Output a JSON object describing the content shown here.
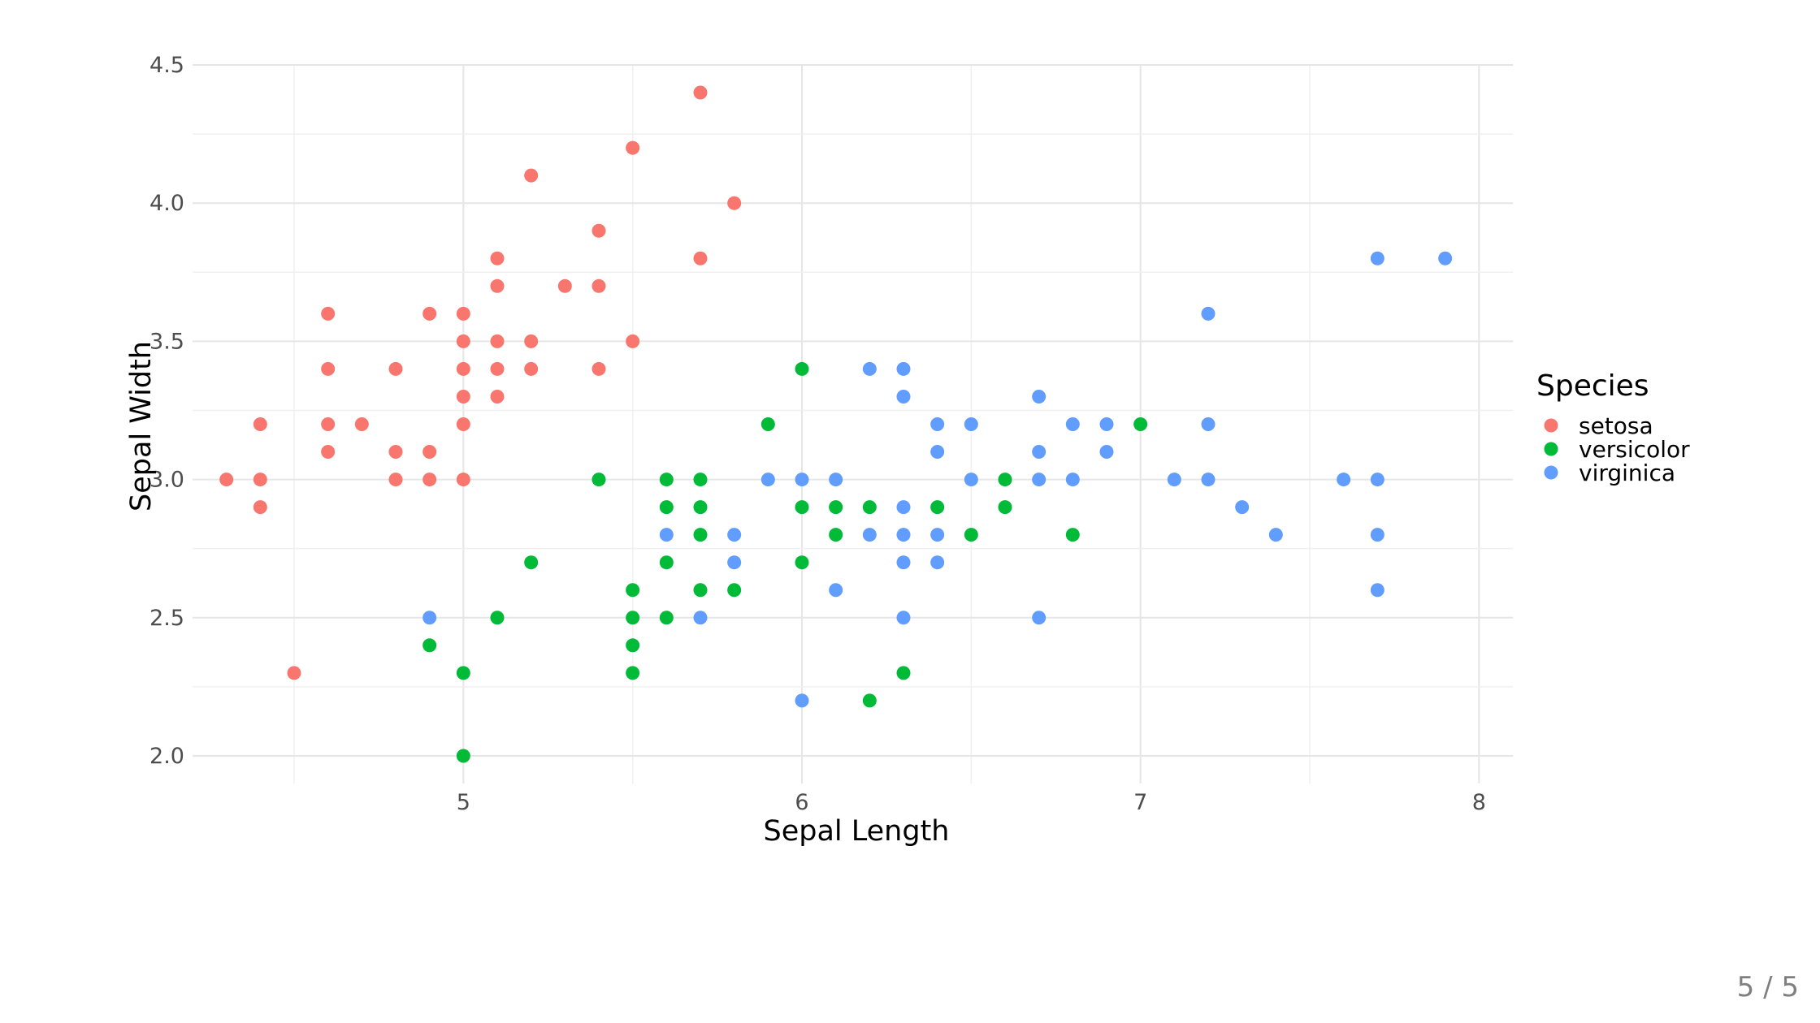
{
  "chart_data": {
    "type": "scatter",
    "title": "",
    "xlabel": "Sepal Length",
    "ylabel": "Sepal Width",
    "xlim": [
      4.2,
      8.1
    ],
    "ylim": [
      1.9,
      4.5
    ],
    "x_ticks": [
      5,
      6,
      7,
      8
    ],
    "y_ticks": [
      2.0,
      2.5,
      3.0,
      3.5,
      4.0,
      4.5
    ],
    "x_tick_labels": [
      "5",
      "6",
      "7",
      "8"
    ],
    "y_tick_labels": [
      "2.0",
      "2.5",
      "3.0",
      "3.5",
      "4.0",
      "4.5"
    ],
    "grid": true,
    "legend_title": "Species",
    "legend_position": "right",
    "series": [
      {
        "name": "setosa",
        "color": "#F8766D",
        "points": [
          [
            4.3,
            3.0
          ],
          [
            4.4,
            2.9
          ],
          [
            4.4,
            3.0
          ],
          [
            4.4,
            3.2
          ],
          [
            4.5,
            2.3
          ],
          [
            4.6,
            3.1
          ],
          [
            4.6,
            3.2
          ],
          [
            4.6,
            3.4
          ],
          [
            4.6,
            3.6
          ],
          [
            4.7,
            3.2
          ],
          [
            4.8,
            3.0
          ],
          [
            4.8,
            3.1
          ],
          [
            4.8,
            3.4
          ],
          [
            4.9,
            3.0
          ],
          [
            4.9,
            3.1
          ],
          [
            4.9,
            3.6
          ],
          [
            5.0,
            3.0
          ],
          [
            5.0,
            3.2
          ],
          [
            5.0,
            3.3
          ],
          [
            5.0,
            3.4
          ],
          [
            5.0,
            3.5
          ],
          [
            5.0,
            3.6
          ],
          [
            5.1,
            3.3
          ],
          [
            5.1,
            3.4
          ],
          [
            5.1,
            3.5
          ],
          [
            5.1,
            3.7
          ],
          [
            5.1,
            3.8
          ],
          [
            5.2,
            3.4
          ],
          [
            5.2,
            3.5
          ],
          [
            5.2,
            4.1
          ],
          [
            5.3,
            3.7
          ],
          [
            5.4,
            3.4
          ],
          [
            5.4,
            3.7
          ],
          [
            5.4,
            3.9
          ],
          [
            5.5,
            3.5
          ],
          [
            5.5,
            4.2
          ],
          [
            5.7,
            3.8
          ],
          [
            5.7,
            4.4
          ],
          [
            5.8,
            4.0
          ]
        ]
      },
      {
        "name": "versicolor",
        "color": "#00BA38",
        "points": [
          [
            4.9,
            2.4
          ],
          [
            5.0,
            2.0
          ],
          [
            5.0,
            2.3
          ],
          [
            5.1,
            2.5
          ],
          [
            5.2,
            2.7
          ],
          [
            5.4,
            3.0
          ],
          [
            5.5,
            2.3
          ],
          [
            5.5,
            2.4
          ],
          [
            5.5,
            2.5
          ],
          [
            5.5,
            2.6
          ],
          [
            5.6,
            2.5
          ],
          [
            5.6,
            2.7
          ],
          [
            5.6,
            2.9
          ],
          [
            5.6,
            3.0
          ],
          [
            5.7,
            2.6
          ],
          [
            5.7,
            2.8
          ],
          [
            5.7,
            2.9
          ],
          [
            5.7,
            3.0
          ],
          [
            5.8,
            2.6
          ],
          [
            5.9,
            3.2
          ],
          [
            6.0,
            2.7
          ],
          [
            6.0,
            2.9
          ],
          [
            6.0,
            3.4
          ],
          [
            6.1,
            2.8
          ],
          [
            6.1,
            2.9
          ],
          [
            6.2,
            2.2
          ],
          [
            6.2,
            2.9
          ],
          [
            6.3,
            2.3
          ],
          [
            6.4,
            2.9
          ],
          [
            6.5,
            2.8
          ],
          [
            6.6,
            2.9
          ],
          [
            6.6,
            3.0
          ],
          [
            6.8,
            2.8
          ],
          [
            7.0,
            3.2
          ]
        ]
      },
      {
        "name": "virginica",
        "color": "#619CFF",
        "points": [
          [
            4.9,
            2.5
          ],
          [
            5.6,
            2.8
          ],
          [
            5.7,
            2.5
          ],
          [
            5.8,
            2.7
          ],
          [
            5.8,
            2.8
          ],
          [
            5.9,
            3.0
          ],
          [
            6.0,
            2.2
          ],
          [
            6.0,
            3.0
          ],
          [
            6.1,
            2.6
          ],
          [
            6.1,
            3.0
          ],
          [
            6.2,
            2.8
          ],
          [
            6.2,
            3.4
          ],
          [
            6.3,
            2.5
          ],
          [
            6.3,
            2.7
          ],
          [
            6.3,
            2.8
          ],
          [
            6.3,
            2.9
          ],
          [
            6.3,
            3.3
          ],
          [
            6.3,
            3.4
          ],
          [
            6.4,
            2.7
          ],
          [
            6.4,
            2.8
          ],
          [
            6.4,
            3.1
          ],
          [
            6.4,
            3.2
          ],
          [
            6.5,
            3.0
          ],
          [
            6.5,
            3.2
          ],
          [
            6.7,
            2.5
          ],
          [
            6.7,
            3.0
          ],
          [
            6.7,
            3.1
          ],
          [
            6.7,
            3.3
          ],
          [
            6.8,
            3.0
          ],
          [
            6.8,
            3.2
          ],
          [
            6.9,
            3.1
          ],
          [
            6.9,
            3.2
          ],
          [
            7.1,
            3.0
          ],
          [
            7.2,
            3.0
          ],
          [
            7.2,
            3.2
          ],
          [
            7.2,
            3.6
          ],
          [
            7.3,
            2.9
          ],
          [
            7.4,
            2.8
          ],
          [
            7.6,
            3.0
          ],
          [
            7.7,
            2.6
          ],
          [
            7.7,
            2.8
          ],
          [
            7.7,
            3.0
          ],
          [
            7.7,
            3.8
          ],
          [
            7.9,
            3.8
          ]
        ]
      }
    ]
  },
  "footer": {
    "page_counter": "5 / 5"
  }
}
